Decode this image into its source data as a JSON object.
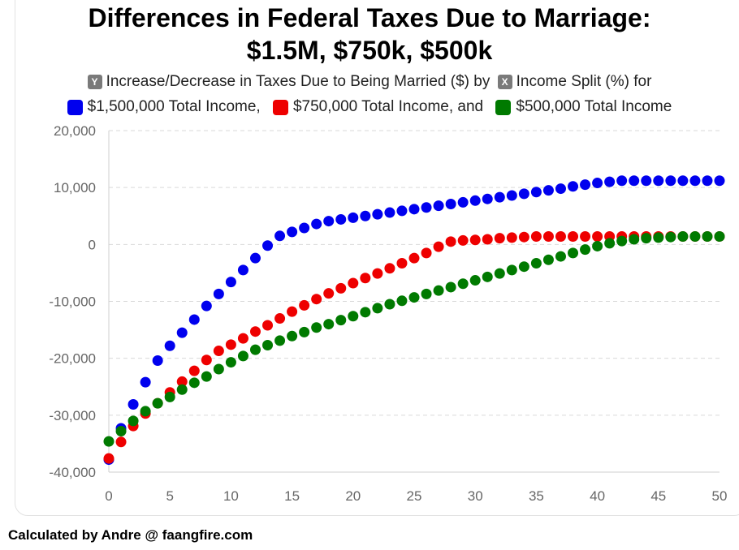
{
  "title": {
    "line1": "Differences in Federal Taxes Due to Marriage:",
    "line2": "$1.5M, $750k, $500k"
  },
  "legend": {
    "y_badge": "Y",
    "x_badge": "X",
    "line1_part1": "Increase/Decrease in Taxes Due to Being Married ($) by",
    "line1_part2": "Income Split (%) for",
    "series1_text": "$1,500,000 Total Income,",
    "series2_text": "$750,000 Total Income, and",
    "series3_text": "$500,000 Total Income"
  },
  "footer": "Calculated by Andre @ faangfire.com",
  "chart_data": {
    "type": "scatter",
    "title": "Differences in Federal Taxes Due to Marriage: $1.5M, $750k, $500k",
    "xlabel": "Income Split (%)",
    "ylabel": "Increase/Decrease in Taxes Due to Being Married ($)",
    "xlim": [
      0,
      50
    ],
    "ylim": [
      -40000,
      20000
    ],
    "x_ticks": [
      "0",
      "5",
      "10",
      "15",
      "20",
      "25",
      "30",
      "35",
      "40",
      "45",
      "50"
    ],
    "y_ticks": [
      "20,000",
      "10,000",
      "0",
      "-10,000",
      "-20,000",
      "-30,000",
      "-40,000"
    ],
    "grid": true,
    "x": [
      0,
      1,
      2,
      3,
      4,
      5,
      6,
      7,
      8,
      9,
      10,
      11,
      12,
      13,
      14,
      15,
      16,
      17,
      18,
      19,
      20,
      21,
      22,
      23,
      24,
      25,
      26,
      27,
      28,
      29,
      30,
      31,
      32,
      33,
      34,
      35,
      36,
      37,
      38,
      39,
      40,
      41,
      42,
      43,
      44,
      45,
      46,
      47,
      48,
      49,
      50
    ],
    "series": [
      {
        "name": "$1,500,000 Total Income",
        "color": "#0000ee",
        "values": [
          -37800,
          -32300,
          -28100,
          -24200,
          -20400,
          -17800,
          -15500,
          -13200,
          -10800,
          -8700,
          -6600,
          -4500,
          -2400,
          -200,
          1500,
          2200,
          2900,
          3600,
          4100,
          4400,
          4700,
          5000,
          5300,
          5600,
          5900,
          6200,
          6500,
          6800,
          7100,
          7400,
          7700,
          8000,
          8300,
          8600,
          8900,
          9200,
          9500,
          9800,
          10200,
          10500,
          10800,
          11000,
          11200,
          11200,
          11200,
          11200,
          11200,
          11200,
          11200,
          11200,
          11200
        ]
      },
      {
        "name": "$750,000 Total Income",
        "color": "#ee0000",
        "values": [
          -37600,
          -34700,
          -31900,
          -29700,
          -27900,
          -26000,
          -24100,
          -22200,
          -20300,
          -18700,
          -17600,
          -16500,
          -15300,
          -14200,
          -13000,
          -11800,
          -10700,
          -9600,
          -8600,
          -7700,
          -6800,
          -5900,
          -5100,
          -4200,
          -3300,
          -2400,
          -1500,
          -400,
          500,
          700,
          800,
          900,
          1100,
          1200,
          1300,
          1400,
          1400,
          1400,
          1400,
          1400,
          1400,
          1400,
          1400,
          1400,
          1400,
          1400,
          1400,
          1400,
          1400,
          1400,
          1400
        ]
      },
      {
        "name": "$500,000 Total Income",
        "color": "#007a00",
        "values": [
          -34600,
          -32800,
          -31000,
          -29300,
          -27900,
          -26800,
          -25500,
          -24300,
          -23200,
          -21900,
          -20700,
          -19600,
          -18500,
          -17700,
          -16900,
          -16100,
          -15400,
          -14600,
          -14000,
          -13300,
          -12600,
          -11900,
          -11200,
          -10500,
          -9900,
          -9300,
          -8700,
          -8100,
          -7500,
          -6900,
          -6300,
          -5700,
          -5100,
          -4500,
          -3900,
          -3300,
          -2700,
          -2100,
          -1500,
          -900,
          -300,
          200,
          600,
          900,
          1100,
          1200,
          1300,
          1400,
          1400,
          1400,
          1400
        ]
      }
    ]
  },
  "footer_visible": true
}
